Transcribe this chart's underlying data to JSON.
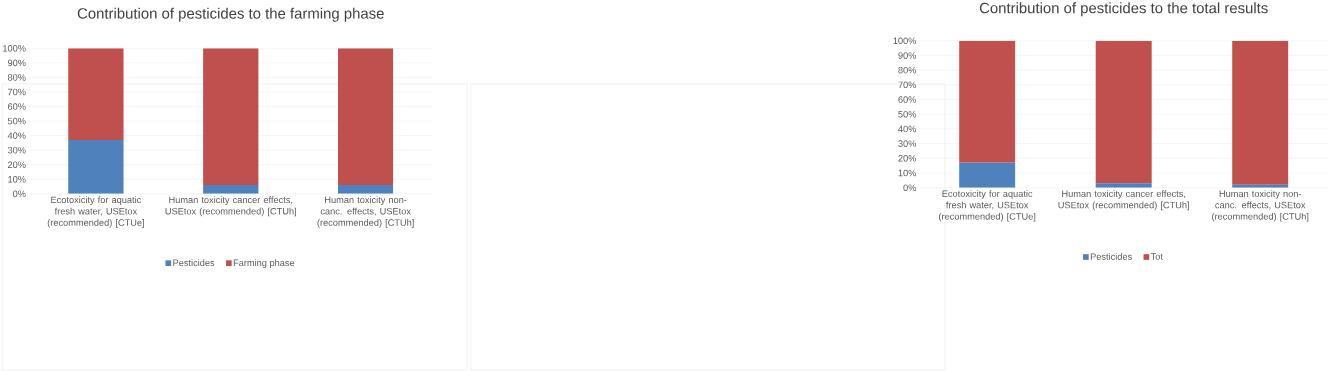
{
  "chart_data": [
    {
      "type": "bar",
      "title": "Contribution of pesticides to the farming phase",
      "categories": [
        "Ecotoxicity for aquatic fresh water, USEtox (recommended) [CTUe]",
        "Human toxicity cancer effects, USEtox (recommended) [CTUh]",
        "Human toxicity non-canc. effects, USEtox (recommended) [CTUh]"
      ],
      "stacked": true,
      "ylim": [
        0,
        100
      ],
      "yticks": [
        {
          "value": 0,
          "label": "0%"
        },
        {
          "value": 10,
          "label": "10%"
        },
        {
          "value": 20,
          "label": "20%"
        },
        {
          "value": 30,
          "label": "30%"
        },
        {
          "value": 40,
          "label": "40%"
        },
        {
          "value": 50,
          "label": "50%"
        },
        {
          "value": 60,
          "label": "60%"
        },
        {
          "value": 70,
          "label": "70%"
        },
        {
          "value": 80,
          "label": "80%"
        },
        {
          "value": 90,
          "label": "90%"
        },
        {
          "value": 100,
          "label": "100%"
        }
      ],
      "grid": "y",
      "legend": "bottom",
      "series": [
        {
          "name": "Pesticides",
          "color": "#4f81bd",
          "values": [
            37,
            6,
            6
          ]
        },
        {
          "name": "Farming phase",
          "color": "#c0504d",
          "values": [
            63,
            94,
            94
          ]
        }
      ]
    },
    {
      "type": "bar",
      "title": "Contribution of pesticides to the total results",
      "categories": [
        "Ecotoxicity for aquatic fresh water, USEtox (recommended) [CTUe]",
        "Human toxicity cancer effects, USEtox (recommended) [CTUh]",
        "Human toxicity non-canc. effects, USEtox (recommended) [CTUh]"
      ],
      "stacked": true,
      "ylim": [
        0,
        100
      ],
      "yticks": [
        {
          "value": 0,
          "label": "0%"
        },
        {
          "value": 10,
          "label": "10%"
        },
        {
          "value": 20,
          "label": "20%"
        },
        {
          "value": 30,
          "label": "30%"
        },
        {
          "value": 40,
          "label": "40%"
        },
        {
          "value": 50,
          "label": "50%"
        },
        {
          "value": 60,
          "label": "60%"
        },
        {
          "value": 70,
          "label": "70%"
        },
        {
          "value": 80,
          "label": "80%"
        },
        {
          "value": 90,
          "label": "90%"
        },
        {
          "value": 100,
          "label": "100%"
        }
      ],
      "grid": "y",
      "legend": "bottom",
      "series": [
        {
          "name": "Pesticides",
          "color": "#4f81bd",
          "values": [
            17,
            3,
            2
          ]
        },
        {
          "name": "Tot",
          "color": "#c0504d",
          "values": [
            83,
            97,
            98
          ]
        }
      ]
    }
  ]
}
